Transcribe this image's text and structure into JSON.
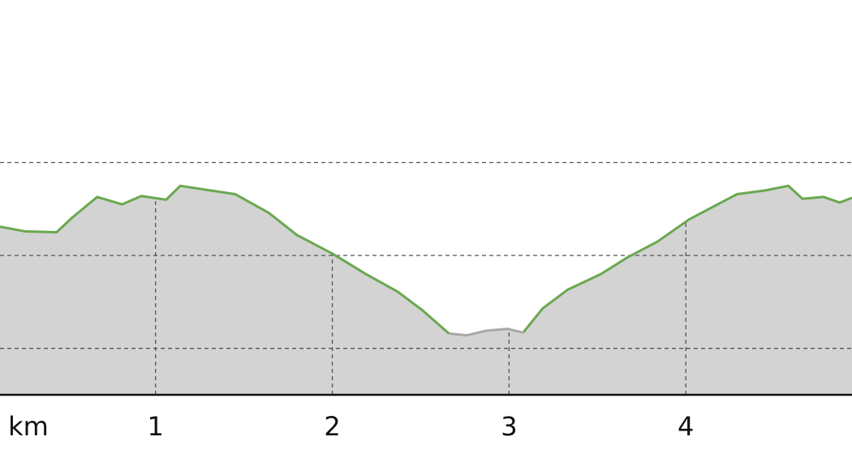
{
  "chart_data": {
    "type": "area-line",
    "xlabel": "km",
    "x": [
      0.12,
      0.26,
      0.44,
      0.53,
      0.67,
      0.81,
      0.92,
      1.06,
      1.14,
      1.31,
      1.45,
      1.64,
      1.8,
      2.0,
      2.19,
      2.37,
      2.51,
      2.66,
      2.76,
      2.87,
      2.99,
      3.08,
      3.19,
      3.33,
      3.52,
      3.67,
      3.84,
      4.02,
      4.16,
      4.29,
      4.45,
      4.58,
      4.66,
      4.78,
      4.87,
      4.94
    ],
    "series": [
      {
        "color": "#6aa84f",
        "values": [
          231,
          226,
          225,
          241,
          263,
          255,
          264,
          260,
          275,
          270,
          266,
          246,
          222,
          202,
          180,
          161,
          141,
          116,
          null,
          null,
          null,
          117,
          143,
          163,
          180,
          198,
          215,
          239,
          253,
          266,
          270,
          275,
          261,
          263,
          257,
          262
        ]
      },
      {
        "color": "#a8a8a8",
        "values": [
          null,
          null,
          null,
          null,
          null,
          null,
          null,
          null,
          null,
          null,
          null,
          null,
          null,
          null,
          null,
          null,
          null,
          116,
          114,
          119,
          121,
          117,
          null,
          null,
          null,
          null,
          null,
          null,
          null,
          null,
          null,
          null,
          null,
          null,
          null,
          null
        ]
      }
    ],
    "area_color": "#d3d3d3",
    "xlim": [
      0.12,
      4.94
    ],
    "xticks": [
      1,
      2,
      3,
      4
    ],
    "ylim": [
      50,
      475
    ],
    "ygrid": [
      100,
      200,
      300
    ],
    "grid": true
  }
}
